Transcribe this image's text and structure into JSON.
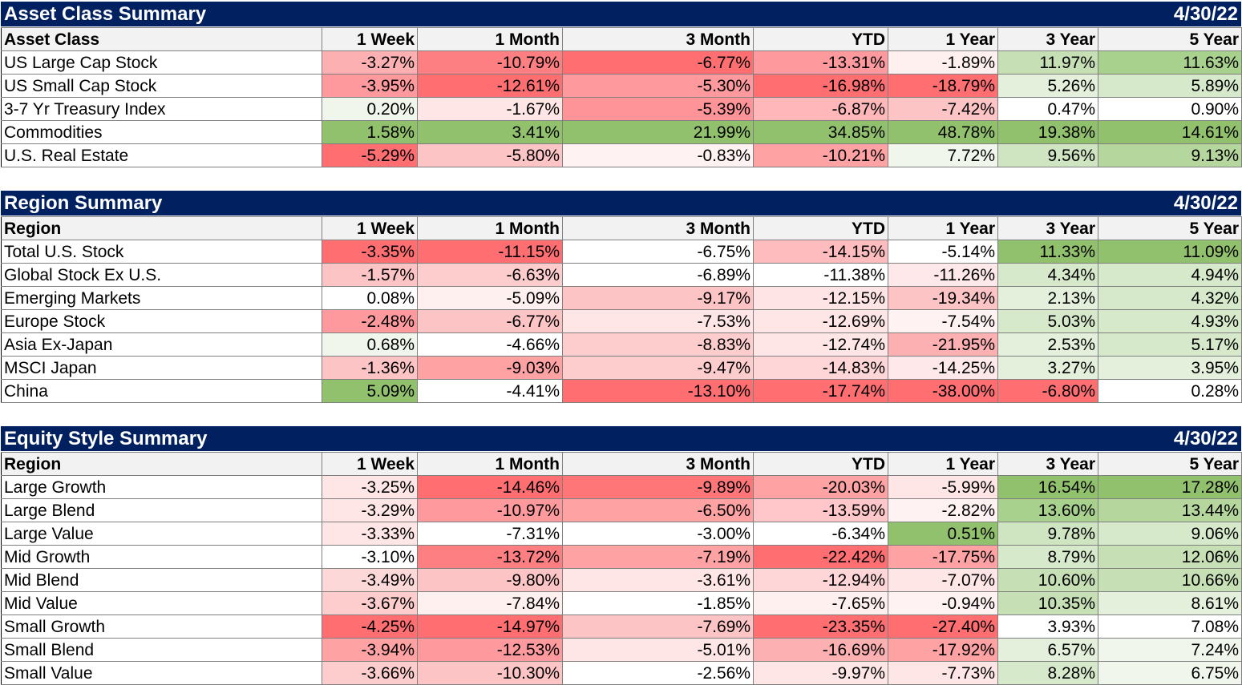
{
  "columns": [
    "1 Week",
    "1 Month",
    "3 Month",
    "YTD",
    "1 Year",
    "3 Year",
    "5 Year"
  ],
  "sections": [
    {
      "title": "Asset Class Summary",
      "date": "4/30/22",
      "first_header": "Asset Class",
      "rows": [
        {
          "label": "US Large Cap Stock",
          "values": [
            "-3.27%",
            "-10.79%",
            "-6.77%",
            "-13.31%",
            "-1.89%",
            "11.97%",
            "11.63%"
          ],
          "colors": [
            "#fdb0b2",
            "#fe7f82",
            "#ff6f72",
            "#fe9a9d",
            "#fff0f0",
            "#c6dfb5",
            "#a9d18e"
          ]
        },
        {
          "label": "US Small Cap Stock",
          "values": [
            "-3.95%",
            "-12.61%",
            "-5.30%",
            "-16.98%",
            "-18.79%",
            "5.26%",
            "5.89%"
          ],
          "colors": [
            "#fe9a9d",
            "#ff6f72",
            "#fe9a9d",
            "#ff6f72",
            "#ff6f72",
            "#e4f0dc",
            "#d7e9cb"
          ]
        },
        {
          "label": "3-7 Yr Treasury Index",
          "values": [
            "0.20%",
            "-1.67%",
            "-5.39%",
            "-6.87%",
            "-7.42%",
            "0.47%",
            "0.90%"
          ],
          "colors": [
            "#f0f6ec",
            "#ffe6e6",
            "#fe9497",
            "#ffb7b9",
            "#fdc4c6",
            "#ffffff",
            "#ffffff"
          ]
        },
        {
          "label": "Commodities",
          "values": [
            "1.58%",
            "3.41%",
            "21.99%",
            "34.85%",
            "48.78%",
            "19.38%",
            "14.61%"
          ],
          "colors": [
            "#92c16d",
            "#92c16d",
            "#92c16d",
            "#92c16d",
            "#92c16d",
            "#92c16d",
            "#92c16d"
          ]
        },
        {
          "label": "U.S. Real Estate",
          "values": [
            "-5.29%",
            "-5.80%",
            "-0.83%",
            "-10.21%",
            "7.72%",
            "9.56%",
            "9.13%"
          ],
          "colors": [
            "#ff6f72",
            "#fdc4c6",
            "#fff2f2",
            "#fea2a4",
            "#f0f6ec",
            "#cfe4c1",
            "#b5d79d"
          ]
        }
      ]
    },
    {
      "title": "Region Summary",
      "date": "4/30/22",
      "first_header": "Region",
      "rows": [
        {
          "label": "Total U.S. Stock",
          "values": [
            "-3.35%",
            "-11.15%",
            "-6.75%",
            "-14.15%",
            "-5.14%",
            "11.33%",
            "11.09%"
          ],
          "colors": [
            "#ff6f72",
            "#ff6f72",
            "#ffffff",
            "#ffbcbe",
            "#ffffff",
            "#92c16d",
            "#92c16d"
          ]
        },
        {
          "label": "Global Stock Ex U.S.",
          "values": [
            "-1.57%",
            "-6.63%",
            "-6.89%",
            "-11.38%",
            "-11.26%",
            "4.34%",
            "4.94%"
          ],
          "colors": [
            "#fdc4c6",
            "#fdcdce",
            "#ffffff",
            "#ffffff",
            "#fee8e9",
            "#d7e9cb",
            "#d7e9cb"
          ]
        },
        {
          "label": "Emerging Markets",
          "values": [
            "0.08%",
            "-5.09%",
            "-9.17%",
            "-12.15%",
            "-19.34%",
            "2.13%",
            "4.32%"
          ],
          "colors": [
            "#ffffff",
            "#fff0f0",
            "#fdc4c6",
            "#ffe4e5",
            "#fdc4c6",
            "#e4f0dc",
            "#d7e9cb"
          ]
        },
        {
          "label": "Europe Stock",
          "values": [
            "-2.48%",
            "-6.77%",
            "-7.53%",
            "-12.69%",
            "-7.54%",
            "5.03%",
            "4.93%"
          ],
          "colors": [
            "#fe9a9d",
            "#fdc4c6",
            "#ffe6e6",
            "#ffe6e6",
            "#fff2f2",
            "#d7e9cb",
            "#d7e9cb"
          ]
        },
        {
          "label": "Asia Ex-Japan",
          "values": [
            "0.68%",
            "-4.66%",
            "-8.83%",
            "-12.74%",
            "-21.95%",
            "2.53%",
            "5.17%"
          ],
          "colors": [
            "#f0f6ec",
            "#ffffff",
            "#fdcdce",
            "#ffe6e6",
            "#fdb0b2",
            "#e4f0dc",
            "#d7e9cb"
          ]
        },
        {
          "label": "MSCI Japan",
          "values": [
            "-1.36%",
            "-9.03%",
            "-9.47%",
            "-14.83%",
            "-14.25%",
            "3.27%",
            "3.95%"
          ],
          "colors": [
            "#fdc4c6",
            "#fea2a4",
            "#fdcdce",
            "#ffd6d7",
            "#fee8e9",
            "#e4f0dc",
            "#e4f0dc"
          ]
        },
        {
          "label": "China",
          "values": [
            "5.09%",
            "-4.41%",
            "-13.10%",
            "-17.74%",
            "-38.00%",
            "-6.80%",
            "0.28%"
          ],
          "colors": [
            "#92c16d",
            "#ffffff",
            "#ff6f72",
            "#ff6f72",
            "#ff6f72",
            "#ff6f72",
            "#ffffff"
          ]
        }
      ]
    },
    {
      "title": "Equity Style Summary",
      "date": "4/30/22",
      "first_header": "Region",
      "rows": [
        {
          "label": "Large Growth",
          "values": [
            "-3.25%",
            "-14.46%",
            "-9.89%",
            "-20.03%",
            "-5.99%",
            "16.54%",
            "17.28%"
          ],
          "colors": [
            "#ffe6e6",
            "#ff6f72",
            "#ff7679",
            "#fea2a4",
            "#ffe6e6",
            "#92c16d",
            "#92c16d"
          ]
        },
        {
          "label": "Large Blend",
          "values": [
            "-3.29%",
            "-10.97%",
            "-6.50%",
            "-13.59%",
            "-2.82%",
            "13.60%",
            "13.44%"
          ],
          "colors": [
            "#ffe6e6",
            "#fe9a9d",
            "#fea2a4",
            "#ffc7c9",
            "#fff2f2",
            "#a9d18e",
            "#b5d79d"
          ]
        },
        {
          "label": "Large Value",
          "values": [
            "-3.33%",
            "-7.31%",
            "-3.00%",
            "-6.34%",
            "0.51%",
            "9.78%",
            "9.06%"
          ],
          "colors": [
            "#ffe6e6",
            "#ffffff",
            "#ffffff",
            "#ffffff",
            "#92c16d",
            "#cfe4c1",
            "#d7e9cb"
          ]
        },
        {
          "label": "Mid Growth",
          "values": [
            "-3.10%",
            "-13.72%",
            "-7.19%",
            "-22.42%",
            "-17.75%",
            "8.79%",
            "12.06%"
          ],
          "colors": [
            "#ffffff",
            "#fe7f82",
            "#fea2a4",
            "#ff6f72",
            "#fea2a4",
            "#d7e9cb",
            "#c6dfb5"
          ]
        },
        {
          "label": "Mid Blend",
          "values": [
            "-3.49%",
            "-9.80%",
            "-3.61%",
            "-12.94%",
            "-7.07%",
            "10.60%",
            "10.66%"
          ],
          "colors": [
            "#fdd8d9",
            "#fdc4c6",
            "#ffe6e6",
            "#ffd6d7",
            "#ffe6e6",
            "#c6dfb5",
            "#c6dfb5"
          ]
        },
        {
          "label": "Mid Value",
          "values": [
            "-3.67%",
            "-7.84%",
            "-1.85%",
            "-7.65%",
            "-0.94%",
            "10.35%",
            "8.61%"
          ],
          "colors": [
            "#fdcdce",
            "#fff0f0",
            "#ffffff",
            "#fff0f0",
            "#fff2f2",
            "#c6dfb5",
            "#e4f0dc"
          ]
        },
        {
          "label": "Small Growth",
          "values": [
            "-4.25%",
            "-14.97%",
            "-7.69%",
            "-23.35%",
            "-27.40%",
            "3.93%",
            "7.08%"
          ],
          "colors": [
            "#ff6f72",
            "#ff6f72",
            "#fdc4c6",
            "#ff6f72",
            "#ff6f72",
            "#ffffff",
            "#ffffff"
          ]
        },
        {
          "label": "Small Blend",
          "values": [
            "-3.94%",
            "-12.53%",
            "-5.01%",
            "-16.69%",
            "-17.92%",
            "6.57%",
            "7.24%"
          ],
          "colors": [
            "#fea2a4",
            "#fe9a9d",
            "#ffe6e6",
            "#fdb0b2",
            "#fea2a4",
            "#e4f0dc",
            "#f0f6ec"
          ]
        },
        {
          "label": "Small Value",
          "values": [
            "-3.66%",
            "-10.30%",
            "-2.56%",
            "-9.97%",
            "-7.73%",
            "8.28%",
            "6.75%"
          ],
          "colors": [
            "#fdcdce",
            "#fdc4c6",
            "#ffffff",
            "#ffe6e6",
            "#ffe6e6",
            "#d7e9cb",
            "#f0f6ec"
          ]
        }
      ]
    }
  ]
}
